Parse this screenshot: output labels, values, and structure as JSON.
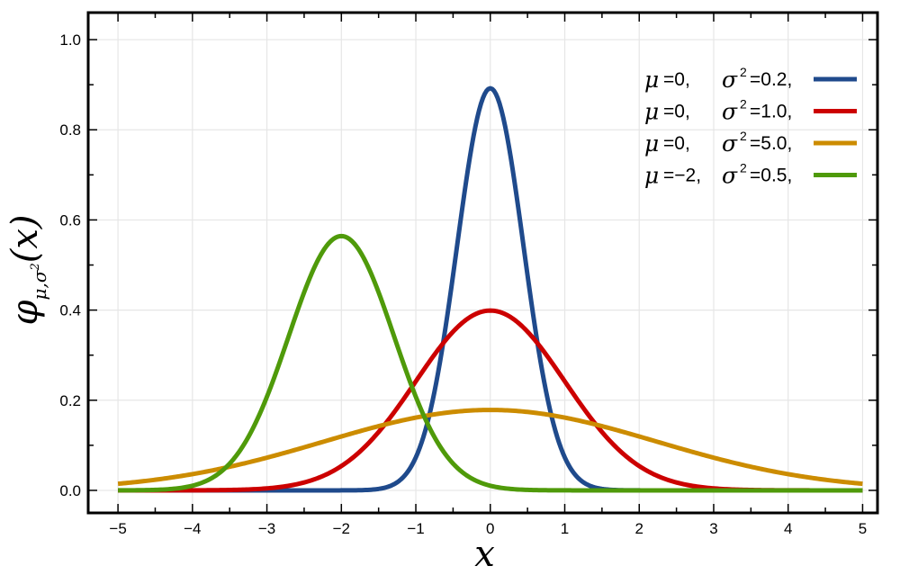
{
  "chart_data": {
    "type": "line",
    "xlabel": "x",
    "ylabel": {
      "main": "φ",
      "subscript_mu": "μ",
      "subscript_sigma": "σ",
      "subscript_sup": "2",
      "arg": "(x)"
    },
    "xlim": [
      -5.4,
      5.2
    ],
    "ylim": [
      -0.05,
      1.06
    ],
    "x_ticks": [
      -5,
      -4,
      -3,
      -2,
      -1,
      0,
      1,
      2,
      3,
      4,
      5
    ],
    "x_tick_labels": [
      "−5",
      "−4",
      "−3",
      "−2",
      "−1",
      "0",
      "1",
      "2",
      "3",
      "4",
      "5"
    ],
    "y_ticks": [
      0.0,
      0.2,
      0.4,
      0.6,
      0.8,
      1.0
    ],
    "y_tick_labels": [
      "0.0",
      "0.2",
      "0.4",
      "0.6",
      "0.8",
      "1.0"
    ],
    "grid": true,
    "legend_position": "top-right",
    "x_range": [
      -5,
      5
    ],
    "series": [
      {
        "mu": 0,
        "sigma2": 0.2,
        "color": "#1f4a8c",
        "mu_label": "0,",
        "sigma_label": "0.2,"
      },
      {
        "mu": 0,
        "sigma2": 1.0,
        "color": "#cc0000",
        "mu_label": "0,",
        "sigma_label": "1.0,"
      },
      {
        "mu": 0,
        "sigma2": 5.0,
        "color": "#cc8c00",
        "mu_label": "0,",
        "sigma_label": "5.0,"
      },
      {
        "mu": -2,
        "sigma2": 0.5,
        "color": "#4f9a0a",
        "mu_label": "−2,",
        "sigma_label": "0.5,"
      }
    ],
    "legend_mu_symbol": "μ",
    "legend_sigma_symbol": "σ",
    "legend_sigma_sup": "2",
    "legend_eq": "="
  }
}
